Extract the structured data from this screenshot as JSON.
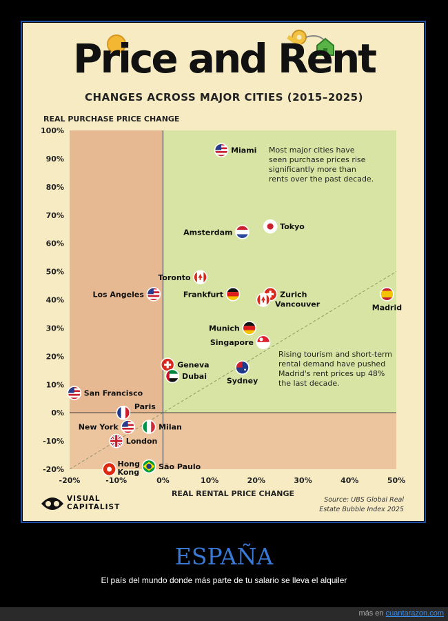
{
  "header": {
    "title": "Price and Rent",
    "subtitle": "CHANGES ACROSS MAJOR CITIES (2015–2025)"
  },
  "footer": {
    "brand_line1": "VISUAL",
    "brand_line2": "CAPITALIST",
    "source_line1": "Source: UBS Global Real",
    "source_line2": "Estate Bubble Index 2025"
  },
  "meme": {
    "heading": "ESPAÑA",
    "caption": "El país del mundo donde más parte de tu salario se lleva el alquiler",
    "credit_prefix": "más en ",
    "credit_site": "cuantarazon.com"
  },
  "colors": {
    "card_bg": "#f7ebc4",
    "quadrant_green": "#d7e4a3",
    "quadrant_orange": "#e7b992",
    "quadrant_orange_light": "#ecc59f",
    "frame_border": "#1e4fa0",
    "meme_heading": "#3a78d6"
  },
  "chart_data": {
    "type": "scatter",
    "xlabel": "REAL RENTAL PRICE CHANGE",
    "ylabel": "REAL PURCHASE PRICE CHANGE",
    "xlim": [
      -20,
      50
    ],
    "ylim": [
      -20,
      100
    ],
    "xticks": [
      "-20%",
      "-10%",
      "0%",
      "10%",
      "20%",
      "30%",
      "40%",
      "50%"
    ],
    "yticks": [
      "-20%",
      "-10%",
      "0%",
      "10%",
      "20%",
      "30%",
      "40%",
      "50%",
      "60%",
      "70%",
      "80%",
      "90%",
      "100%"
    ],
    "reference_line": "y = x (dashed)",
    "annotations": [
      "Most major cities have seen purchase prices rise significantly more than rents over the past decade.",
      "Rising tourism and short-term rental demand have pushed Madrid's rent prices up 48% the last decade."
    ],
    "points": [
      {
        "city": "Miami",
        "x": 12.5,
        "y": 93,
        "flag": "us"
      },
      {
        "city": "Tokyo",
        "x": 23,
        "y": 66,
        "flag": "jp"
      },
      {
        "city": "Amsterdam",
        "x": 17,
        "y": 64,
        "flag": "nl"
      },
      {
        "city": "Toronto",
        "x": 8,
        "y": 48,
        "flag": "ca"
      },
      {
        "city": "Los Angeles",
        "x": -2,
        "y": 42,
        "flag": "us"
      },
      {
        "city": "Frankfurt",
        "x": 15,
        "y": 42,
        "flag": "de"
      },
      {
        "city": "Zurich",
        "x": 23,
        "y": 42,
        "flag": "ch"
      },
      {
        "city": "Vancouver",
        "x": 21.5,
        "y": 40,
        "flag": "ca"
      },
      {
        "city": "Madrid",
        "x": 48,
        "y": 42,
        "flag": "es"
      },
      {
        "city": "Munich",
        "x": 18.5,
        "y": 30,
        "flag": "de"
      },
      {
        "city": "Singapore",
        "x": 21.5,
        "y": 25,
        "flag": "sg"
      },
      {
        "city": "Geneva",
        "x": 1,
        "y": 17,
        "flag": "ch"
      },
      {
        "city": "Sydney",
        "x": 17,
        "y": 16,
        "flag": "au"
      },
      {
        "city": "Dubai",
        "x": 2,
        "y": 13,
        "flag": "ae"
      },
      {
        "city": "San Francisco",
        "x": -19,
        "y": 7,
        "flag": "us"
      },
      {
        "city": "Paris",
        "x": -8.5,
        "y": 0,
        "flag": "fr"
      },
      {
        "city": "New York",
        "x": -7.5,
        "y": -5,
        "flag": "us"
      },
      {
        "city": "Milan",
        "x": -3,
        "y": -5,
        "flag": "it"
      },
      {
        "city": "London",
        "x": -10,
        "y": -10,
        "flag": "gb"
      },
      {
        "city": "Hong Kong",
        "x": -11.5,
        "y": -20,
        "flag": "hk"
      },
      {
        "city": "São Paulo",
        "x": -3,
        "y": -19,
        "flag": "br"
      }
    ]
  }
}
